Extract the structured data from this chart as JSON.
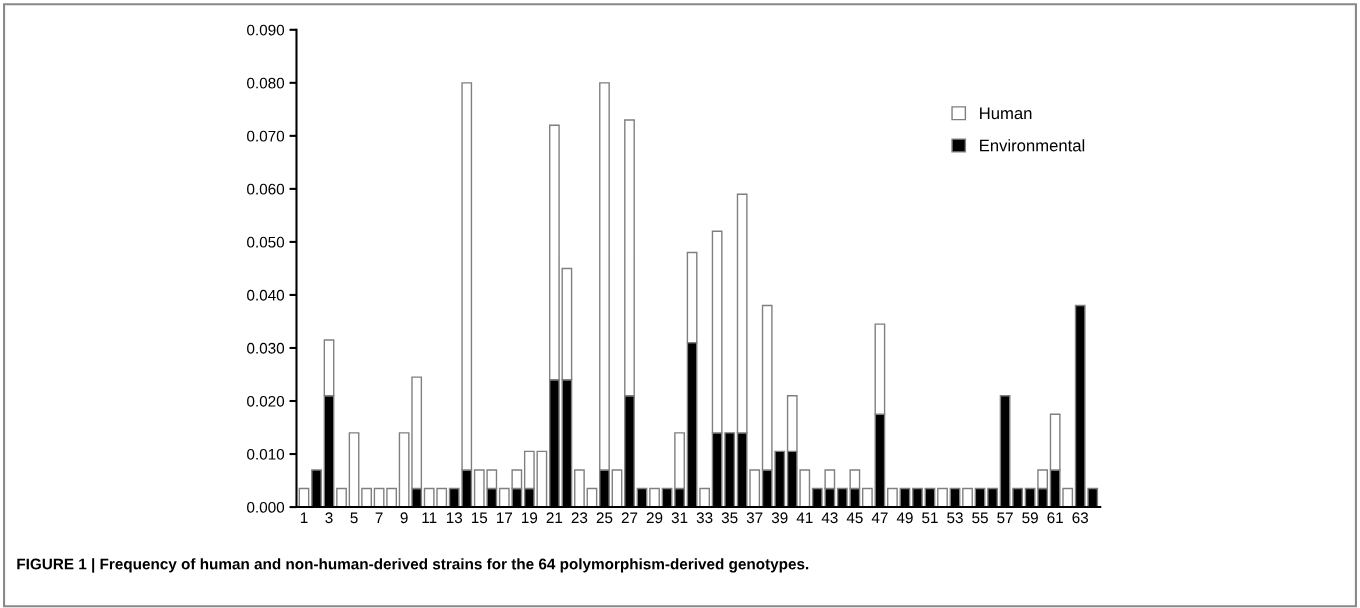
{
  "chart_data": {
    "type": "bar",
    "stacked": true,
    "categories": [
      "1",
      null,
      "3",
      null,
      "5",
      null,
      "7",
      null,
      "9",
      null,
      "11",
      null,
      "13",
      null,
      "15",
      null,
      "17",
      null,
      "19",
      null,
      "21",
      null,
      "23",
      null,
      "25",
      null,
      "27",
      null,
      "29",
      null,
      "31",
      null,
      "33",
      null,
      "35",
      null,
      "37",
      null,
      "39",
      null,
      "41",
      null,
      "43",
      null,
      "45",
      null,
      "47",
      null,
      "49",
      null,
      "51",
      null,
      "53",
      null,
      "55",
      null,
      "57",
      null,
      "59",
      null,
      "61",
      null,
      "63",
      null
    ],
    "series": [
      {
        "name": "Environmental",
        "color": "#000000",
        "values": [
          0,
          0.007,
          0.021,
          0,
          0,
          0,
          0,
          0,
          0,
          0.0035,
          0,
          0,
          0.0035,
          0.007,
          0,
          0.0035,
          0,
          0.0035,
          0.0035,
          0,
          0.024,
          0.024,
          0,
          0,
          0.007,
          0,
          0.021,
          0.0035,
          0,
          0.0035,
          0.0035,
          0.031,
          0,
          0.014,
          0.014,
          0.014,
          0,
          0.007,
          0.0105,
          0.0105,
          0,
          0.0035,
          0.0035,
          0.0035,
          0.0035,
          0,
          0.0175,
          0,
          0.0035,
          0.0035,
          0.0035,
          0,
          0.0035,
          0,
          0.0035,
          0.0035,
          0.021,
          0.0035,
          0.0035,
          0.0035,
          0.007,
          0,
          0.038,
          0.0035
        ]
      },
      {
        "name": "Human",
        "color": "#ffffff",
        "values": [
          0.0035,
          0,
          0.0105,
          0.0035,
          0.014,
          0.0035,
          0.0035,
          0.0035,
          0.014,
          0.021,
          0.0035,
          0.0035,
          0,
          0.073,
          0.007,
          0.0035,
          0.0035,
          0.0035,
          0.007,
          0.0105,
          0.048,
          0.021,
          0.007,
          0.0035,
          0.073,
          0.007,
          0.052,
          0,
          0.0035,
          0,
          0.0105,
          0.017,
          0.0035,
          0.038,
          0,
          0.045,
          0.007,
          0.031,
          0,
          0.0105,
          0.007,
          0,
          0.0035,
          0,
          0.0035,
          0.0035,
          0.017,
          0.0035,
          0,
          0,
          0,
          0.0035,
          0,
          0.0035,
          0,
          0,
          0,
          0,
          0,
          0.0035,
          0.0105,
          0.0035,
          0,
          0
        ]
      }
    ],
    "ylim": [
      0,
      0.09
    ],
    "yticks": [
      {
        "value": 0,
        "label": "0.000"
      },
      {
        "value": 0.01,
        "label": "0.010"
      },
      {
        "value": 0.02,
        "label": "0.020"
      },
      {
        "value": 0.03,
        "label": "0.030"
      },
      {
        "value": 0.04,
        "label": "0.040"
      },
      {
        "value": 0.05,
        "label": "0.050"
      },
      {
        "value": 0.06,
        "label": "0.060"
      },
      {
        "value": 0.07,
        "label": "0.070"
      },
      {
        "value": 0.08,
        "label": "0.080"
      },
      {
        "value": 0.09,
        "label": "0.090"
      }
    ],
    "grid": false,
    "legend": "top right",
    "annotations": [
      "FIGURE 1 | Frequency of human and non-human-derived strains for the 64 polymorphism-derived genotypes."
    ]
  }
}
